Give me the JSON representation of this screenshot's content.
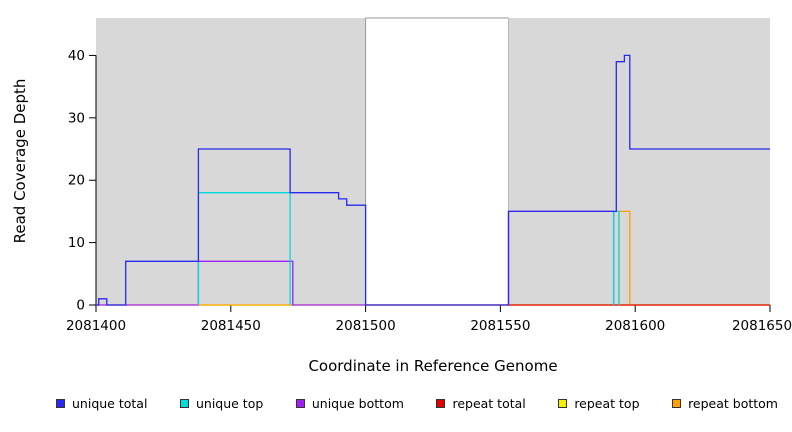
{
  "figure": {
    "xlabel": "Coordinate in Reference Genome",
    "ylabel": "Read Coverage Depth"
  },
  "chart_data": {
    "type": "line",
    "title": "",
    "xlabel": "Coordinate in Reference Genome",
    "ylabel": "Read Coverage Depth",
    "xlim": [
      2081400,
      2081650
    ],
    "ylim": [
      0,
      46
    ],
    "x_ticks": [
      2081400,
      2081450,
      2081500,
      2081550,
      2081600,
      2081650
    ],
    "y_ticks": [
      0,
      10,
      20,
      30,
      40
    ],
    "grid": false,
    "legend_position": "bottom",
    "background_bands": [
      {
        "x0": 2081400,
        "x1": 2081500,
        "color": "#d8d8d8"
      },
      {
        "x0": 2081500,
        "x1": 2081553,
        "color": "#ffffff",
        "border": "#9a9a9a"
      },
      {
        "x0": 2081553,
        "x1": 2081650,
        "color": "#d8d8d8"
      }
    ],
    "series": [
      {
        "name": "repeat top",
        "color": "#f0f000",
        "segments": [
          [
            [
              2081400,
              0
            ],
            [
              2081650,
              0
            ]
          ]
        ]
      },
      {
        "name": "repeat bottom",
        "color": "#ffa000",
        "segments": [
          [
            [
              2081438,
              0
            ],
            [
              2081473,
              0
            ]
          ],
          [
            [
              2081594,
              0
            ],
            [
              2081594,
              15
            ],
            [
              2081598,
              15
            ],
            [
              2081598,
              0
            ]
          ]
        ]
      },
      {
        "name": "repeat total",
        "color": "#e00000",
        "segments": [
          [
            [
              2081500,
              0
            ],
            [
              2081650,
              0
            ]
          ]
        ]
      },
      {
        "name": "unique bottom",
        "color": "#a020f0",
        "segments": [
          [
            [
              2081400,
              0
            ],
            [
              2081438,
              0
            ],
            [
              2081438,
              7
            ],
            [
              2081473,
              7
            ],
            [
              2081473,
              0
            ],
            [
              2081500,
              0
            ]
          ],
          [
            [
              2081553,
              0
            ],
            [
              2081553,
              15
            ],
            [
              2081592,
              15
            ],
            [
              2081592,
              0
            ]
          ]
        ]
      },
      {
        "name": "unique top",
        "color": "#00dcdc",
        "segments": [
          [
            [
              2081438,
              0
            ],
            [
              2081438,
              18
            ],
            [
              2081472,
              18
            ],
            [
              2081472,
              0
            ]
          ],
          [
            [
              2081592,
              0
            ],
            [
              2081592,
              15
            ],
            [
              2081594,
              15
            ],
            [
              2081594,
              0
            ]
          ]
        ]
      },
      {
        "name": "unique total",
        "color": "#2828f0",
        "segments": [
          [
            [
              2081400,
              0
            ],
            [
              2081401,
              0
            ],
            [
              2081401,
              1
            ],
            [
              2081404,
              1
            ],
            [
              2081404,
              0
            ],
            [
              2081411,
              0
            ],
            [
              2081411,
              7
            ],
            [
              2081438,
              7
            ],
            [
              2081438,
              25
            ],
            [
              2081472,
              25
            ],
            [
              2081472,
              18
            ],
            [
              2081490,
              18
            ],
            [
              2081490,
              17
            ],
            [
              2081493,
              17
            ],
            [
              2081493,
              16
            ],
            [
              2081500,
              16
            ],
            [
              2081500,
              0
            ],
            [
              2081553,
              0
            ],
            [
              2081553,
              15
            ],
            [
              2081593,
              15
            ],
            [
              2081593,
              39
            ],
            [
              2081596,
              39
            ],
            [
              2081596,
              40
            ],
            [
              2081598,
              40
            ],
            [
              2081598,
              25
            ],
            [
              2081650,
              25
            ]
          ]
        ]
      }
    ],
    "legend": [
      {
        "label": "unique total",
        "color": "#2828f0"
      },
      {
        "label": "unique top",
        "color": "#00dcdc"
      },
      {
        "label": "unique bottom",
        "color": "#a020f0"
      },
      {
        "label": "repeat total",
        "color": "#e00000"
      },
      {
        "label": "repeat top",
        "color": "#f0f000"
      },
      {
        "label": "repeat bottom",
        "color": "#ffa000"
      }
    ]
  }
}
